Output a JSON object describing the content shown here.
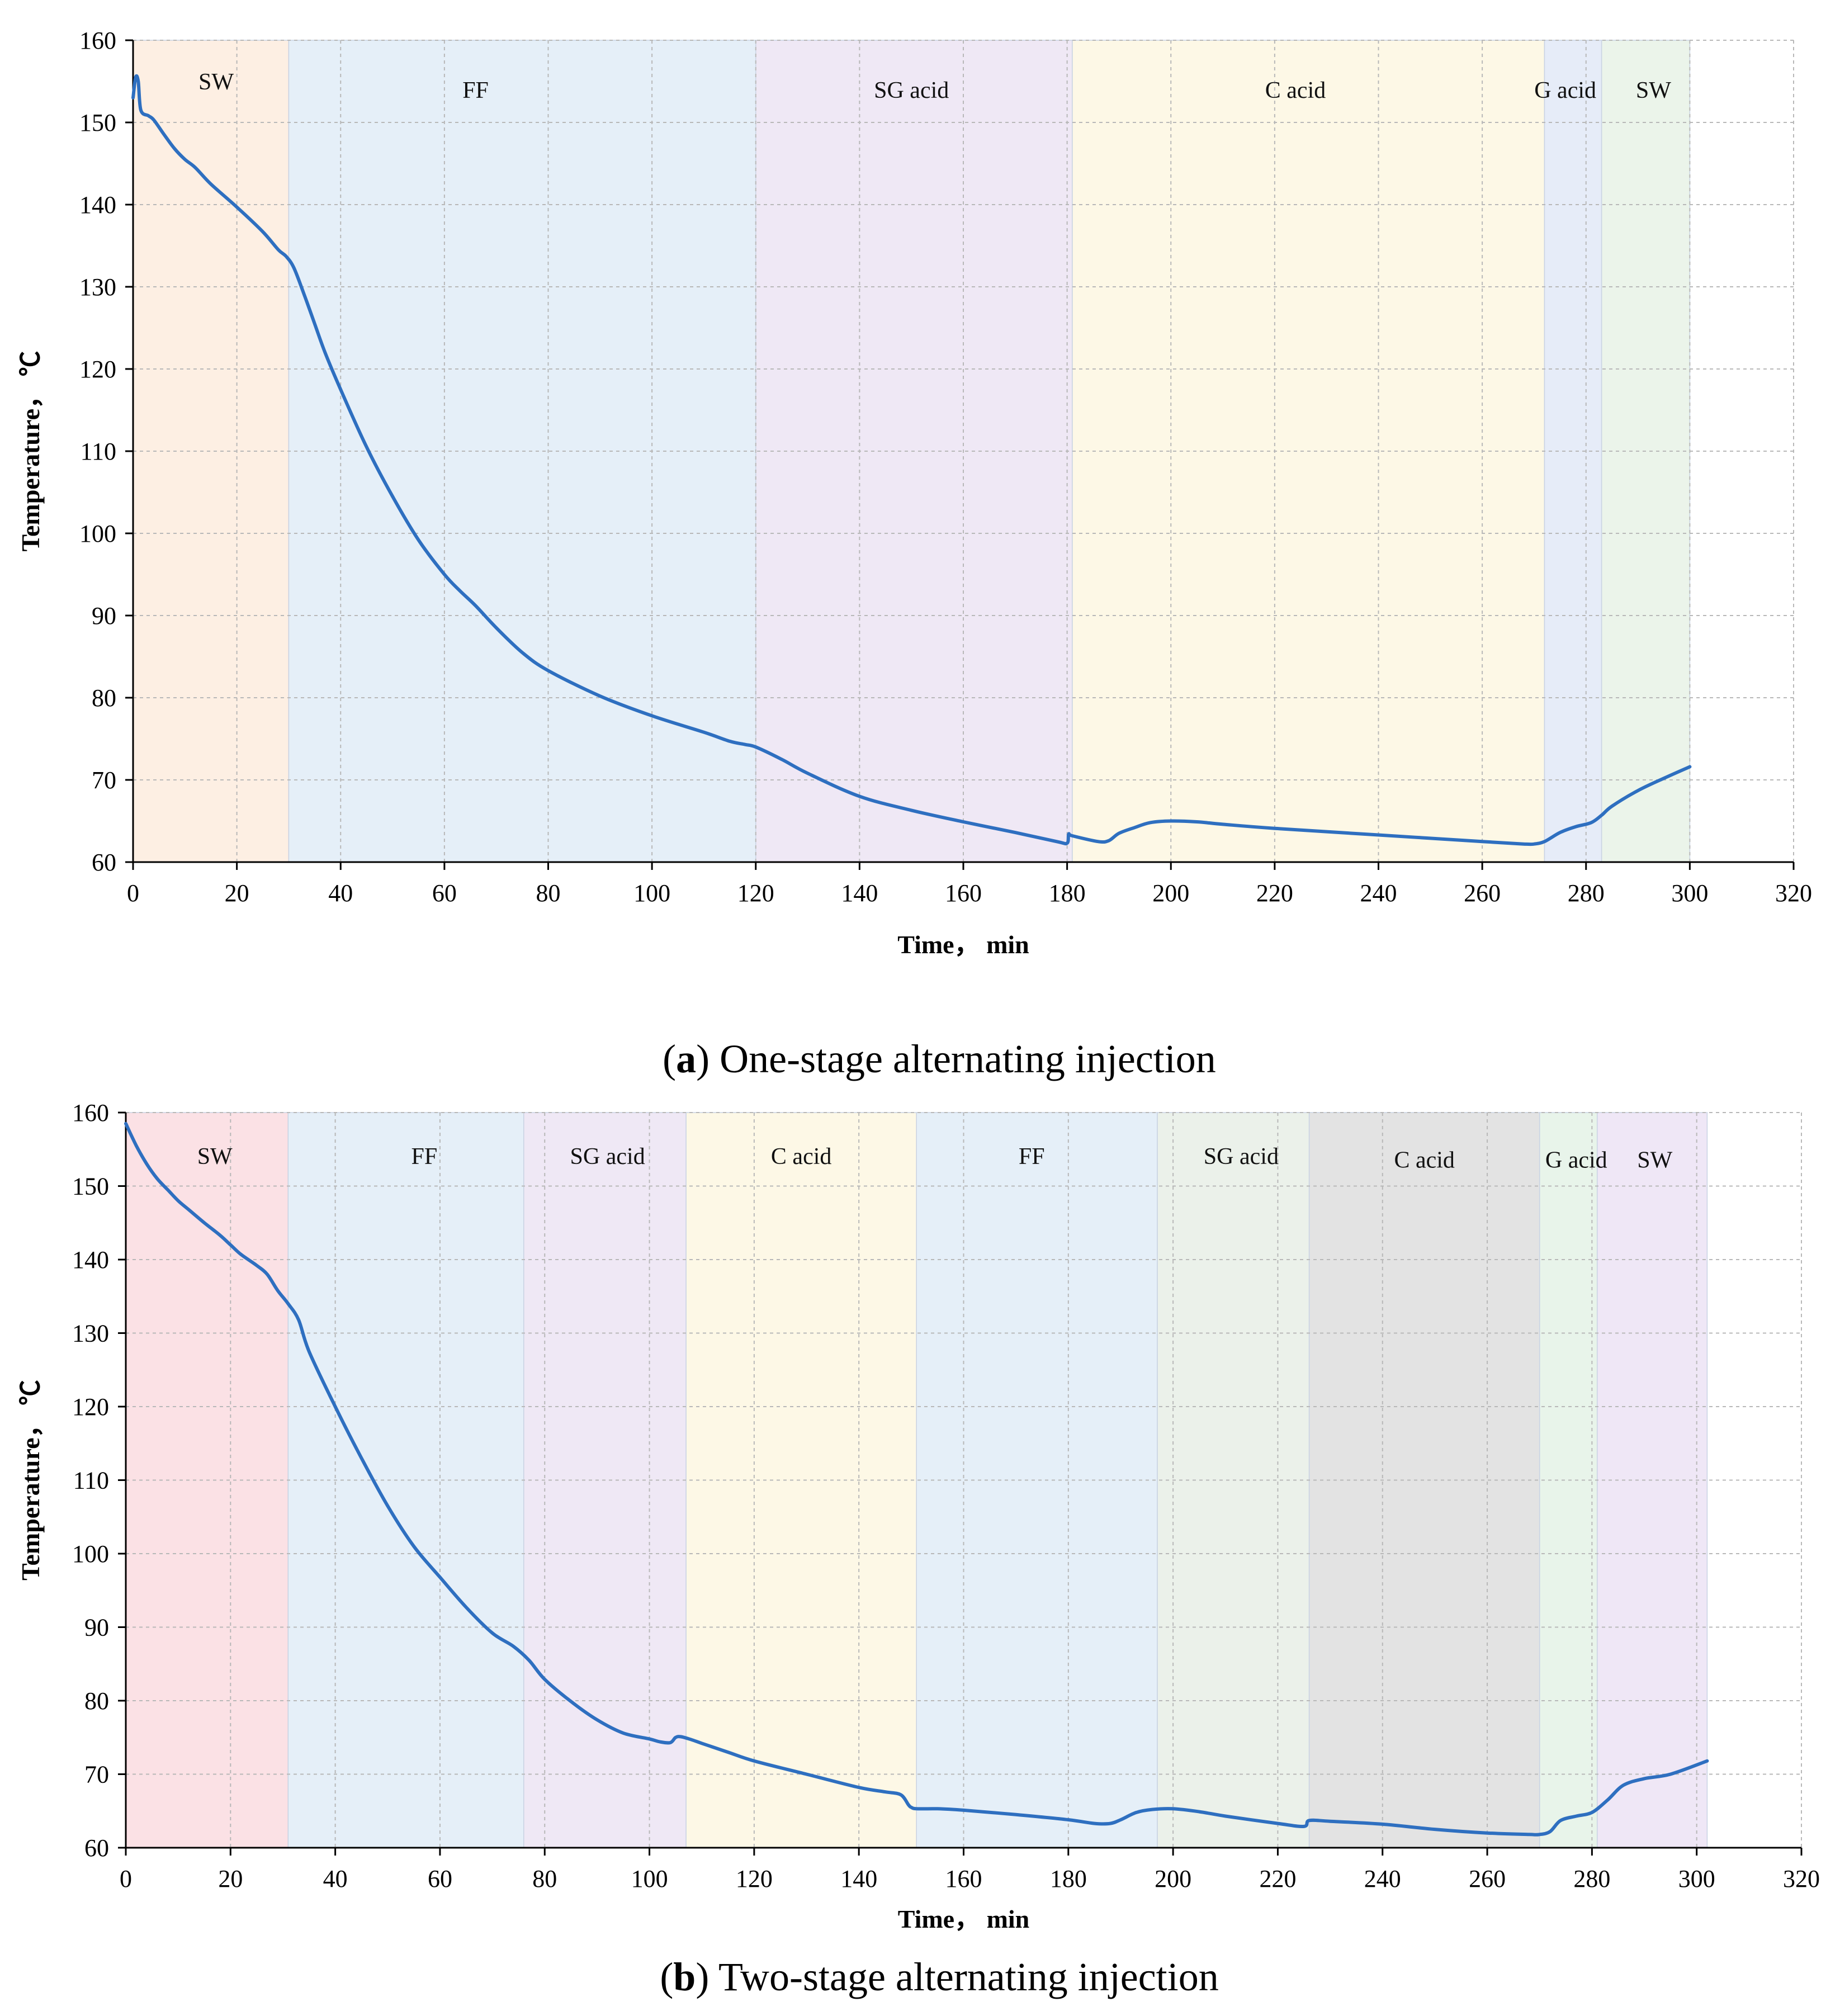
{
  "chart_data": [
    {
      "type": "line",
      "panel": "a",
      "caption_letter": "a",
      "caption_text": "One-stage alternating injection",
      "xlabel": "Time， min",
      "ylabel": "Temperature， ℃",
      "xlim": [
        0,
        320
      ],
      "ylim": [
        60,
        160
      ],
      "xticks": [
        0,
        20,
        40,
        60,
        80,
        100,
        120,
        140,
        160,
        180,
        200,
        220,
        240,
        260,
        280,
        300,
        320
      ],
      "yticks": [
        60,
        70,
        80,
        90,
        100,
        110,
        120,
        130,
        140,
        150,
        160
      ],
      "grid": true,
      "line_color": "#2e6fc0",
      "regions": [
        {
          "label": "SW",
          "start": 0,
          "end": 30,
          "color": "#fdefe3",
          "label_x": 16,
          "label_y": 154
        },
        {
          "label": "FF",
          "start": 30,
          "end": 120,
          "color": "#e5eff8",
          "label_x": 66,
          "label_y": 153
        },
        {
          "label": "SG acid",
          "start": 120,
          "end": 181,
          "color": "#efe8f5",
          "label_x": 150,
          "label_y": 153
        },
        {
          "label": "C acid",
          "start": 181,
          "end": 272,
          "color": "#fdf8e6",
          "label_x": 224,
          "label_y": 153
        },
        {
          "label": "G acid",
          "start": 272,
          "end": 283,
          "color": "#e6ecf8",
          "label_x": 276,
          "label_y": 153
        },
        {
          "label": "SW",
          "start": 283,
          "end": 300,
          "color": "#ebf4ea",
          "label_x": 293,
          "label_y": 153
        }
      ],
      "series": [
        {
          "name": "Temperature",
          "x": [
            0,
            0.5,
            1,
            1.5,
            3,
            4,
            6,
            8,
            10,
            12,
            15,
            20,
            25,
            28,
            29.5,
            31,
            33,
            35,
            37,
            40,
            45,
            50,
            55,
            60,
            63,
            66,
            70,
            75,
            80,
            90,
            100,
            110,
            115,
            118,
            120,
            125,
            130,
            140,
            150,
            160,
            170,
            178,
            180,
            180.3,
            181,
            186,
            188,
            190,
            193,
            196,
            200,
            205,
            210,
            220,
            240,
            260,
            268,
            270,
            272,
            275,
            278,
            281,
            283,
            285,
            290,
            295,
            300
          ],
          "y": [
            153,
            155.5,
            155,
            151.5,
            150.8,
            150.3,
            148.5,
            146.8,
            145.5,
            144.5,
            142.5,
            139.7,
            136.7,
            134.5,
            133.7,
            132.3,
            129,
            125.5,
            122,
            117.5,
            110.5,
            104.5,
            99.2,
            95,
            93,
            91.2,
            88.5,
            85.5,
            83.3,
            80.2,
            77.8,
            75.8,
            74.7,
            74.3,
            74,
            72.5,
            70.8,
            68,
            66.3,
            64.9,
            63.6,
            62.5,
            62.3,
            63.4,
            63.2,
            62.5,
            62.6,
            63.5,
            64.2,
            64.8,
            65,
            64.9,
            64.6,
            64.1,
            63.3,
            62.5,
            62.2,
            62.2,
            62.5,
            63.6,
            64.3,
            64.8,
            65.7,
            66.8,
            68.7,
            70.2,
            71.6
          ]
        }
      ]
    },
    {
      "type": "line",
      "panel": "b",
      "caption_letter": "b",
      "caption_text": "Two-stage alternating injection",
      "xlabel": "Time， min",
      "ylabel": "Temperature， ℃",
      "xlim": [
        0,
        320
      ],
      "ylim": [
        60,
        160
      ],
      "xticks": [
        0,
        20,
        40,
        60,
        80,
        100,
        120,
        140,
        160,
        180,
        200,
        220,
        240,
        260,
        280,
        300,
        320
      ],
      "yticks": [
        60,
        70,
        80,
        90,
        100,
        110,
        120,
        130,
        140,
        150,
        160
      ],
      "grid": true,
      "line_color": "#2e6fc0",
      "regions": [
        {
          "label": "SW",
          "start": 0,
          "end": 31,
          "color": "#fbe1e5",
          "label_x": 17,
          "label_y": 153
        },
        {
          "label": "FF",
          "start": 31,
          "end": 76,
          "color": "#e5eff8",
          "label_x": 57,
          "label_y": 153
        },
        {
          "label": "SG acid",
          "start": 76,
          "end": 107,
          "color": "#efe8f5",
          "label_x": 92,
          "label_y": 153
        },
        {
          "label": "C acid",
          "start": 107,
          "end": 151,
          "color": "#fdf8e6",
          "label_x": 129,
          "label_y": 153
        },
        {
          "label": "FF",
          "start": 151,
          "end": 197,
          "color": "#e5eff8",
          "label_x": 173,
          "label_y": 153
        },
        {
          "label": "SG acid",
          "start": 197,
          "end": 226,
          "color": "#ebf1ea",
          "label_x": 213,
          "label_y": 153
        },
        {
          "label": "C acid",
          "start": 226,
          "end": 270,
          "color": "#e3e3e3",
          "label_x": 248,
          "label_y": 152.5
        },
        {
          "label": "G acid",
          "start": 270,
          "end": 281,
          "color": "#e8f4ea",
          "label_x": 277,
          "label_y": 152.5
        },
        {
          "label": "SW",
          "start": 281,
          "end": 302,
          "color": "#efe7f6",
          "label_x": 292,
          "label_y": 152.5
        }
      ],
      "series": [
        {
          "name": "Temperature",
          "x": [
            0,
            2,
            4,
            6,
            8,
            10,
            12,
            15,
            18,
            20,
            22,
            25,
            27,
            29,
            31,
            33,
            35,
            40,
            45,
            50,
            55,
            60,
            65,
            70,
            74,
            77,
            80,
            85,
            90,
            95,
            100,
            102,
            104,
            105,
            106,
            108,
            110,
            115,
            120,
            130,
            140,
            145,
            148,
            149.5,
            150,
            151,
            155,
            160,
            170,
            180,
            185,
            188,
            190,
            193,
            196,
            200,
            205,
            210,
            220,
            225,
            226,
            230,
            240,
            250,
            260,
            268,
            270,
            272,
            274,
            277,
            280,
            283,
            286,
            290,
            295,
            302
          ],
          "y": [
            158.5,
            155.5,
            153,
            151,
            149.5,
            148,
            146.8,
            145,
            143.3,
            142,
            140.7,
            139.2,
            138,
            135.8,
            134,
            131.8,
            127.5,
            120,
            113,
            106.5,
            101,
            96.8,
            92.7,
            89.2,
            87.4,
            85.5,
            82.9,
            79.9,
            77.4,
            75.6,
            74.8,
            74.4,
            74.3,
            75,
            75.1,
            74.7,
            74.2,
            73,
            71.8,
            70,
            68.2,
            67.6,
            67.2,
            65.8,
            65.5,
            65.3,
            65.3,
            65.1,
            64.5,
            63.8,
            63.3,
            63.3,
            63.8,
            64.8,
            65.2,
            65.3,
            64.9,
            64.3,
            63.3,
            62.9,
            63.7,
            63.6,
            63.2,
            62.5,
            62,
            61.8,
            61.8,
            62.2,
            63.7,
            64.3,
            64.8,
            66.5,
            68.5,
            69.4,
            70,
            71.8
          ]
        }
      ]
    }
  ]
}
